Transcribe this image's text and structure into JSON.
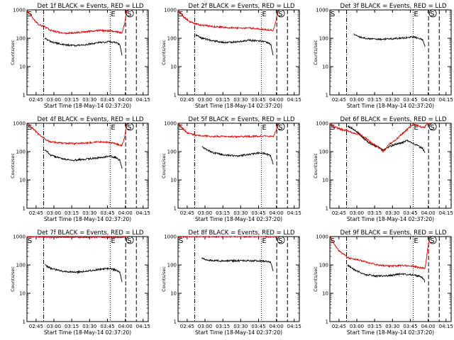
{
  "figure": {
    "y_label": "Counts/sec",
    "x_label": "Start Time (18-May-14 02:37:20)",
    "x_ticks": [
      "02:45",
      "03:00",
      "03:15",
      "03:30",
      "03:45",
      "04:00",
      "04:15"
    ],
    "y_ticks": [
      "1",
      "10",
      "100",
      "1000"
    ],
    "colors": {
      "events": "#000000",
      "lld": "#dd0000"
    },
    "markers": [
      "S",
      "E",
      "S"
    ]
  },
  "chart_data": [
    {
      "type": "line",
      "title": "Det 1f BLACK = Events, RED = LLD",
      "xlabel": "Start Time (18-May-14 02:37:20)",
      "ylabel": "Counts/sec",
      "x_unit": "minutes after 02:37:20",
      "ylim": [
        1,
        1000
      ],
      "yscale": "log",
      "series": [
        {
          "name": "Events",
          "color": "#000000",
          "x": [
            15,
            20,
            30,
            40,
            50,
            60,
            70,
            75,
            78,
            80
          ],
          "values": [
            100,
            75,
            60,
            55,
            60,
            70,
            75,
            70,
            60,
            25
          ]
        },
        {
          "name": "LLD",
          "color": "#dd0000",
          "x": [
            0,
            5,
            10,
            15,
            20,
            30,
            40,
            50,
            60,
            70,
            75,
            78,
            80,
            82,
            84
          ],
          "values": [
            1000,
            500,
            300,
            250,
            190,
            150,
            155,
            170,
            190,
            180,
            170,
            160,
            160,
            300,
            1000
          ]
        }
      ]
    },
    {
      "type": "line",
      "title": "Det 2f BLACK = Events, RED = LLD",
      "xlabel": "Start Time (18-May-14 02:37:20)",
      "ylabel": "Counts/sec",
      "x_unit": "minutes after 02:37:20",
      "ylim": [
        1,
        1000
      ],
      "yscale": "log",
      "series": [
        {
          "name": "Events",
          "color": "#000000",
          "x": [
            15,
            20,
            30,
            40,
            50,
            60,
            70,
            75,
            78,
            80
          ],
          "values": [
            130,
            100,
            80,
            70,
            75,
            85,
            80,
            70,
            60,
            25
          ]
        },
        {
          "name": "LLD",
          "color": "#dd0000",
          "x": [
            0,
            5,
            10,
            15,
            20,
            30,
            40,
            50,
            60,
            70,
            75,
            80,
            82,
            84
          ],
          "values": [
            1000,
            550,
            380,
            320,
            290,
            260,
            240,
            230,
            230,
            210,
            200,
            190,
            350,
            1000
          ]
        }
      ]
    },
    {
      "type": "line",
      "title": "Det 3f BLACK = Events, RED = LLD",
      "xlabel": "Start Time (18-May-14 02:37:20)",
      "ylabel": "Counts/sec",
      "x_unit": "minutes after 02:37:20",
      "ylim": [
        1,
        1000
      ],
      "yscale": "log",
      "series": [
        {
          "name": "Events",
          "color": "#000000",
          "x": [
            20,
            25,
            30,
            40,
            50,
            60,
            70,
            75,
            78,
            80
          ],
          "values": [
            140,
            110,
            100,
            90,
            95,
            100,
            110,
            100,
            90,
            50
          ]
        }
      ]
    },
    {
      "type": "line",
      "title": "Det 4f BLACK = Events, RED = LLD",
      "xlabel": "Start Time (18-May-14 02:37:20)",
      "ylabel": "Counts/sec",
      "x_unit": "minutes after 02:37:20",
      "ylim": [
        1,
        1000
      ],
      "yscale": "log",
      "series": [
        {
          "name": "Events",
          "color": "#000000",
          "x": [
            15,
            20,
            30,
            40,
            50,
            60,
            70,
            75,
            78,
            80
          ],
          "values": [
            120,
            75,
            55,
            50,
            55,
            60,
            70,
            60,
            50,
            25
          ]
        },
        {
          "name": "LLD",
          "color": "#dd0000",
          "x": [
            0,
            5,
            10,
            15,
            20,
            30,
            40,
            50,
            60,
            70,
            75,
            78,
            80,
            82,
            84
          ],
          "values": [
            1000,
            650,
            400,
            280,
            220,
            200,
            190,
            200,
            220,
            210,
            190,
            170,
            170,
            300,
            1000
          ]
        }
      ]
    },
    {
      "type": "line",
      "title": "Det 5f BLACK = Events, RED = LLD",
      "xlabel": "Start Time (18-May-14 02:37:20)",
      "ylabel": "Counts/sec",
      "x_unit": "minutes after 02:37:20",
      "ylim": [
        1,
        1000
      ],
      "yscale": "log",
      "series": [
        {
          "name": "Events",
          "color": "#000000",
          "x": [
            20,
            25,
            30,
            40,
            50,
            60,
            70,
            75,
            78,
            80
          ],
          "values": [
            150,
            110,
            90,
            75,
            70,
            80,
            90,
            80,
            70,
            35
          ]
        },
        {
          "name": "LLD",
          "color": "#dd0000",
          "x": [
            0,
            3,
            8,
            15,
            25,
            40,
            55,
            70,
            78,
            80,
            82,
            84
          ],
          "values": [
            1000,
            700,
            450,
            380,
            350,
            340,
            340,
            350,
            350,
            330,
            500,
            1000
          ]
        }
      ]
    },
    {
      "type": "line",
      "title": "Det 6f BLACK = Events, RED = LLD",
      "xlabel": "Start Time (18-May-14 02:37:20)",
      "ylabel": "Counts/sec",
      "x_unit": "minutes after 02:37:20",
      "ylim": [
        1,
        1000
      ],
      "yscale": "log",
      "series": [
        {
          "name": "Events",
          "color": "#000000",
          "x": [
            15,
            20,
            25,
            30,
            35,
            40,
            45,
            50,
            55,
            60,
            65,
            70,
            75,
            78,
            80
          ],
          "values": [
            800,
            600,
            420,
            250,
            180,
            150,
            110,
            150,
            180,
            200,
            250,
            200,
            150,
            130,
            90
          ]
        },
        {
          "name": "LLD",
          "color": "#dd0000",
          "x": [
            0,
            5,
            10,
            15,
            20,
            25,
            30,
            35,
            40,
            45,
            50,
            55,
            60,
            65,
            70,
            75,
            78,
            80,
            82,
            84
          ],
          "values": [
            1000,
            700,
            600,
            550,
            450,
            400,
            300,
            200,
            150,
            100,
            180,
            250,
            400,
            600,
            900,
            800,
            700,
            750,
            1000,
            1000
          ]
        }
      ]
    },
    {
      "type": "line",
      "title": "Det 7f BLACK = Events, RED = LLD",
      "xlabel": "Start Time (18-May-14 02:37:20)",
      "ylabel": "Counts/sec",
      "x_unit": "minutes after 02:37:20",
      "ylim": [
        1,
        1000
      ],
      "yscale": "log",
      "series": [
        {
          "name": "Events",
          "color": "#000000",
          "x": [
            15,
            20,
            30,
            40,
            50,
            60,
            70,
            75,
            78,
            80
          ],
          "values": [
            100,
            75,
            60,
            55,
            60,
            70,
            75,
            65,
            55,
            25
          ]
        },
        {
          "name": "LLD",
          "color": "#dd0000",
          "x": [
            0,
            10,
            20,
            30,
            40,
            50,
            60,
            70,
            80,
            84
          ],
          "values": [
            1000,
            1000,
            950,
            950,
            950,
            950,
            950,
            950,
            950,
            1000
          ]
        }
      ]
    },
    {
      "type": "line",
      "title": "Det 8f BLACK = Events, RED = LLD",
      "xlabel": "Start Time (18-May-14 02:37:20)",
      "ylabel": "Counts/sec",
      "x_unit": "minutes after 02:37:20",
      "ylim": [
        1,
        1000
      ],
      "yscale": "log",
      "series": [
        {
          "name": "Events",
          "color": "#000000",
          "x": [
            20,
            25,
            30,
            40,
            50,
            60,
            70,
            75,
            78,
            80
          ],
          "values": [
            170,
            150,
            140,
            140,
            140,
            140,
            140,
            130,
            120,
            60
          ]
        },
        {
          "name": "LLD",
          "color": "#dd0000",
          "x": [
            0,
            20,
            40,
            60,
            80,
            84
          ],
          "values": [
            1000,
            1000,
            1000,
            1000,
            1000,
            1000
          ]
        }
      ]
    },
    {
      "type": "line",
      "title": "Det 9f BLACK = Events, RED = LLD",
      "xlabel": "Start Time (18-May-14 02:37:20)",
      "ylabel": "Counts/sec",
      "x_unit": "minutes after 02:37:20",
      "ylim": [
        1,
        1000
      ],
      "yscale": "log",
      "series": [
        {
          "name": "Events",
          "color": "#000000",
          "x": [
            15,
            20,
            25,
            30,
            40,
            50,
            60,
            70,
            75,
            78,
            80
          ],
          "values": [
            100,
            70,
            55,
            45,
            40,
            42,
            48,
            45,
            40,
            35,
            25
          ]
        },
        {
          "name": "LLD",
          "color": "#dd0000",
          "x": [
            0,
            2,
            5,
            8,
            12,
            15,
            20,
            30,
            40,
            50,
            60,
            70,
            75,
            80,
            82,
            84
          ],
          "values": [
            1000,
            700,
            450,
            300,
            230,
            180,
            160,
            130,
            100,
            90,
            95,
            90,
            80,
            75,
            300,
            1000
          ]
        }
      ]
    }
  ]
}
